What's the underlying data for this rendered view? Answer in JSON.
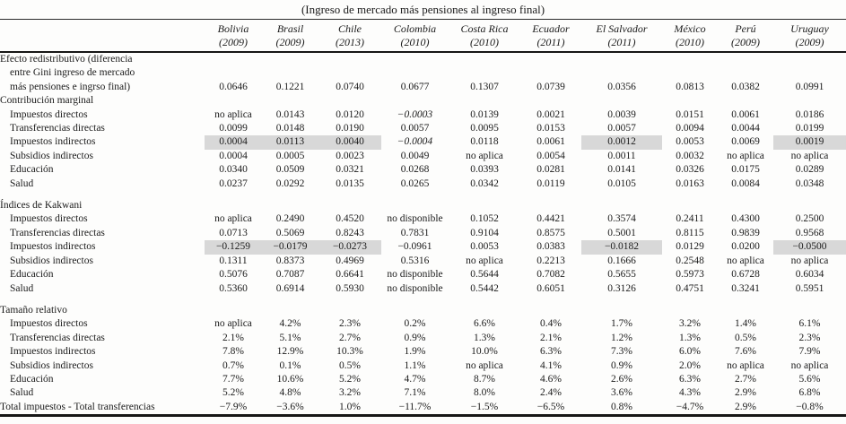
{
  "title": "(Ingreso de mercado más pensiones al ingreso final)",
  "table": {
    "columns": [
      {
        "country": "Bolivia",
        "year": "(2009)"
      },
      {
        "country": "Brasil",
        "year": "(2009)"
      },
      {
        "country": "Chile",
        "year": "(2013)"
      },
      {
        "country": "Colombia",
        "year": "(2010)"
      },
      {
        "country": "Costa Rica",
        "year": "(2010)"
      },
      {
        "country": "Ecuador",
        "year": "(2011)"
      },
      {
        "country": "El Salvador",
        "year": "(2011)"
      },
      {
        "country": "México",
        "year": "(2010)"
      },
      {
        "country": "Perú",
        "year": "(2009)"
      },
      {
        "country": "Uruguay",
        "year": "(2009)"
      }
    ],
    "highlight_color": "#d8d8d8",
    "rows": [
      {
        "label_lines": [
          "Efecto redistributivo (diferencia",
          "entre Gini ingreso de mercado",
          "más pensiones e ingrso final)"
        ],
        "values": [
          "0.0646",
          "0.1221",
          "0.0740",
          "0.0677",
          "0.1307",
          "0.0739",
          "0.0356",
          "0.0813",
          "0.0382",
          "0.0991"
        ]
      },
      {
        "label": "Contribución marginal",
        "section": true
      },
      {
        "label": "Impuestos directos",
        "indent": true,
        "values": [
          "no aplica",
          "0.0143",
          "0.0120",
          "−0.0003",
          "0.0139",
          "0.0021",
          "0.0039",
          "0.0151",
          "0.0061",
          "0.0186"
        ],
        "italics": [
          3
        ]
      },
      {
        "label": "Transferencias directas",
        "indent": true,
        "values": [
          "0.0099",
          "0.0148",
          "0.0190",
          "0.0057",
          "0.0095",
          "0.0153",
          "0.0057",
          "0.0094",
          "0.0044",
          "0.0199"
        ]
      },
      {
        "label": "Impuestos indirectos",
        "indent": true,
        "values": [
          "0.0004",
          "0.0113",
          "0.0040",
          "−0.0004",
          "0.0118",
          "0.0061",
          "0.0012",
          "0.0053",
          "0.0069",
          "0.0019"
        ],
        "highlights": [
          0,
          1,
          2,
          6,
          9
        ],
        "italics": [
          3
        ]
      },
      {
        "label": "Subsidios indirectos",
        "indent": true,
        "values": [
          "0.0004",
          "0.0005",
          "0.0023",
          "0.0049",
          "no aplica",
          "0.0054",
          "0.0011",
          "0.0032",
          "no aplica",
          "no aplica"
        ]
      },
      {
        "label": "Educación",
        "indent": true,
        "values": [
          "0.0340",
          "0.0509",
          "0.0321",
          "0.0268",
          "0.0393",
          "0.0281",
          "0.0141",
          "0.0326",
          "0.0175",
          "0.0289"
        ]
      },
      {
        "label": "Salud",
        "indent": true,
        "values": [
          "0.0237",
          "0.0292",
          "0.0135",
          "0.0265",
          "0.0342",
          "0.0119",
          "0.0105",
          "0.0163",
          "0.0084",
          "0.0348"
        ]
      },
      {
        "label": "Índices de Kakwani",
        "section": true,
        "gap": true
      },
      {
        "label": "Impuestos directos",
        "indent": true,
        "values": [
          "no aplica",
          "0.2490",
          "0.4520",
          "no disponible",
          "0.1052",
          "0.4421",
          "0.3574",
          "0.2411",
          "0.4300",
          "0.2500"
        ]
      },
      {
        "label": "Transferencias directas",
        "indent": true,
        "values": [
          "0.0713",
          "0.5069",
          "0.8243",
          "0.7831",
          "0.9104",
          "0.8575",
          "0.5001",
          "0.8115",
          "0.9839",
          "0.9568"
        ]
      },
      {
        "label": "Impuestos indirectos",
        "indent": true,
        "values": [
          "−0.1259",
          "−0.0179",
          "−0.0273",
          "−0.0961",
          "0.0053",
          "0.0383",
          "−0.0182",
          "0.0129",
          "0.0200",
          "−0.0500"
        ],
        "highlights": [
          0,
          1,
          2,
          6,
          9
        ]
      },
      {
        "label": "Subsidios indirectos",
        "indent": true,
        "values": [
          "0.1311",
          "0.8373",
          "0.4969",
          "0.5316",
          "no aplica",
          "0.2213",
          "0.1666",
          "0.2548",
          "no aplica",
          "no aplica"
        ]
      },
      {
        "label": "Educación",
        "indent": true,
        "values": [
          "0.5076",
          "0.7087",
          "0.6641",
          "no disponible",
          "0.5644",
          "0.7082",
          "0.5655",
          "0.5973",
          "0.6728",
          "0.6034"
        ]
      },
      {
        "label": "Salud",
        "indent": true,
        "values": [
          "0.5360",
          "0.6914",
          "0.5930",
          "no disponible",
          "0.5442",
          "0.6051",
          "0.3126",
          "0.4751",
          "0.3241",
          "0.5951"
        ]
      },
      {
        "label": "Tamaño relativo",
        "section": true,
        "gap": true
      },
      {
        "label": "Impuestos directos",
        "indent": true,
        "values": [
          "no aplica",
          "4.2%",
          "2.3%",
          "0.2%",
          "6.6%",
          "0.4%",
          "1.7%",
          "3.2%",
          "1.4%",
          "6.1%"
        ]
      },
      {
        "label": "Transferencias directas",
        "indent": true,
        "values": [
          "2.1%",
          "5.1%",
          "2.7%",
          "0.9%",
          "1.3%",
          "2.1%",
          "1.2%",
          "1.3%",
          "0.5%",
          "2.3%"
        ]
      },
      {
        "label": "Impuestos indirectos",
        "indent": true,
        "values": [
          "7.8%",
          "12.9%",
          "10.3%",
          "1.9%",
          "10.0%",
          "6.3%",
          "7.3%",
          "6.0%",
          "7.6%",
          "7.9%"
        ]
      },
      {
        "label": "Subsidios indirectos",
        "indent": true,
        "values": [
          "0.7%",
          "0.1%",
          "0.5%",
          "1.1%",
          "no aplica",
          "4.1%",
          "0.9%",
          "2.0%",
          "no aplica",
          "no aplica"
        ]
      },
      {
        "label": "Educación",
        "indent": true,
        "values": [
          "7.7%",
          "10.6%",
          "5.2%",
          "4.7%",
          "8.7%",
          "4.6%",
          "2.6%",
          "6.3%",
          "2.7%",
          "5.6%"
        ]
      },
      {
        "label": "Salud",
        "indent": true,
        "values": [
          "5.2%",
          "4.8%",
          "3.2%",
          "7.1%",
          "8.0%",
          "2.4%",
          "3.6%",
          "4.3%",
          "2.9%",
          "6.8%"
        ]
      },
      {
        "label": "Total impuestos - Total transferencias",
        "values": [
          "−7.9%",
          "−3.6%",
          "1.0%",
          "−11.7%",
          "−1.5%",
          "−6.5%",
          "0.8%",
          "−4.7%",
          "2.9%",
          "−0.8%"
        ]
      }
    ]
  }
}
